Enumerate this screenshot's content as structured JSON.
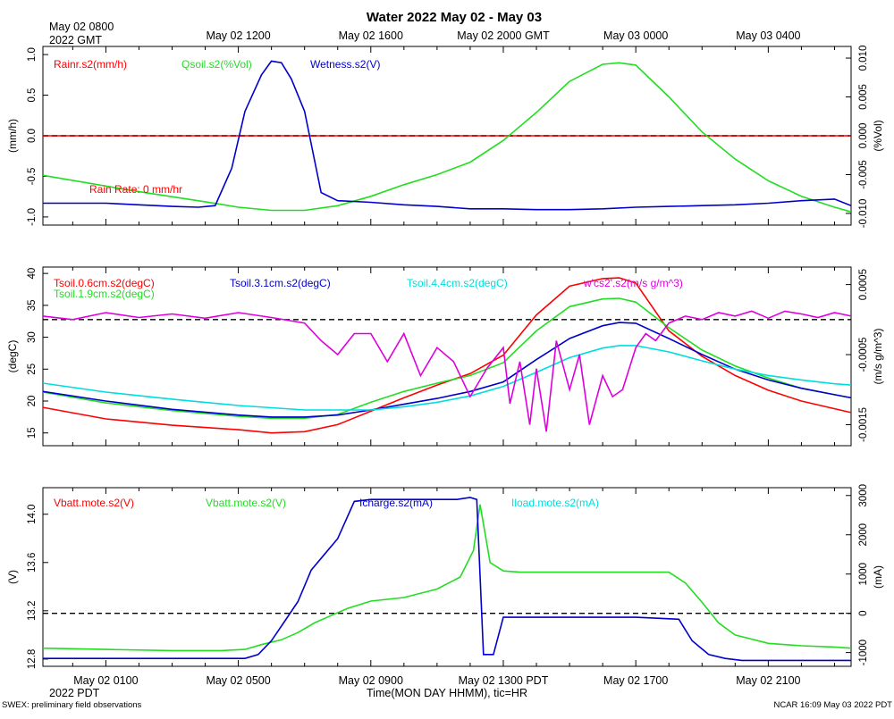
{
  "header": {
    "title": "Water 2022 May 02 - May 03",
    "gmt_origin_line1": "May 02 0800",
    "gmt_origin_line2": "2022 GMT",
    "gmt_ticks": [
      "May 02 1200",
      "May 02 1600",
      "May 02 2000 GMT",
      "May 03 0000",
      "May 03 0400"
    ]
  },
  "footer": {
    "pdt_ticks": [
      "May 02 0100",
      "May 02 0500",
      "May 02 0900",
      "May 02 1300 PDT",
      "May 02 1700",
      "May 02 2100"
    ],
    "pdt_origin": "2022 PDT",
    "xlabel": "Time(MON DAY HHMM), tic=HR",
    "left_note": "SWEX: preliminary field observations",
    "right_note": "NCAR 16:09 May 03 2022 PDT"
  },
  "colors": {
    "red": "#ff0000",
    "green": "#22dd22",
    "blue": "#0000cc",
    "cyan": "#00dddd",
    "magenta": "#dd00dd",
    "black": "#000000"
  },
  "chart_data": [
    {
      "type": "line",
      "x_unit": "hours PDT since May 02 0000",
      "xlim": [
        -0.9,
        23.5
      ],
      "ylabel_left": "(mm/h)",
      "ylim_left": [
        -1.1,
        1.1
      ],
      "yticks_left": [
        "-1.0",
        "-0.5",
        "0.0",
        "0.5",
        "1.0"
      ],
      "ylabel_right": "(%Vol)",
      "ylim_right": [
        -0.0115,
        0.0115
      ],
      "yticks_right": [
        "-0.010",
        "-0.005",
        "0.000",
        "0.005",
        "0.010"
      ],
      "annotation": "Rain Rate: 0 mm/hr",
      "series": [
        {
          "name": "Rainr.s2(mm/h)",
          "color": "red",
          "axis": "left",
          "x": [
            -0.9,
            23.5
          ],
          "y": [
            0,
            0
          ]
        },
        {
          "name": "Qsoil.s2(%Vol)",
          "color": "green",
          "axis": "right",
          "x": [
            -0.9,
            2,
            4,
            5,
            6,
            7,
            8,
            9,
            10,
            11,
            12,
            13,
            14,
            15,
            16,
            16.5,
            17,
            18,
            19,
            20,
            21,
            22,
            23,
            23.5
          ],
          "y": [
            -0.0051,
            -0.0072,
            -0.0085,
            -0.0092,
            -0.0096,
            -0.0096,
            -0.009,
            -0.0078,
            -0.0063,
            -0.005,
            -0.0034,
            -0.0006,
            0.003,
            0.007,
            0.0092,
            0.0094,
            0.0091,
            0.005,
            0.0005,
            -0.003,
            -0.0058,
            -0.0078,
            -0.0092,
            -0.0098
          ]
        },
        {
          "name": "Wetness.s2(V)",
          "color": "blue",
          "axis": "left",
          "x": [
            -0.9,
            1,
            2,
            3,
            3.8,
            4.3,
            4.8,
            5.2,
            5.7,
            6.0,
            6.3,
            6.6,
            7.0,
            7.5,
            8,
            9,
            10,
            11,
            12,
            13,
            14,
            15,
            16,
            17,
            18,
            19,
            20,
            21,
            22,
            23,
            23.5
          ],
          "y": [
            -0.83,
            -0.83,
            -0.85,
            -0.87,
            -0.88,
            -0.86,
            -0.4,
            0.3,
            0.75,
            0.92,
            0.9,
            0.7,
            0.3,
            -0.7,
            -0.8,
            -0.82,
            -0.85,
            -0.87,
            -0.9,
            -0.9,
            -0.91,
            -0.91,
            -0.9,
            -0.88,
            -0.87,
            -0.86,
            -0.85,
            -0.83,
            -0.8,
            -0.78,
            -0.86
          ]
        }
      ]
    },
    {
      "type": "line",
      "x_unit": "hours PDT since May 02 0000",
      "xlim": [
        -0.9,
        23.5
      ],
      "ylabel_left": "(degC)",
      "ylim_left": [
        13,
        41
      ],
      "yticks_left": [
        "15",
        "20",
        "25",
        "30",
        "35",
        "40"
      ],
      "ylabel_right": "(m/s g/m^3)",
      "ylim_right": [
        -0.0018,
        0.00075
      ],
      "yticks_right": [
        "-0.0015",
        "-0.0005",
        "0.0005"
      ],
      "series": [
        {
          "name": "Tsoil.0.6cm.s2(degC)",
          "color": "red",
          "axis": "left",
          "x": [
            -0.9,
            1,
            3,
            5,
            6,
            7,
            8,
            9,
            10,
            11,
            12,
            13,
            14,
            15,
            16,
            16.5,
            17,
            18,
            19,
            20,
            21,
            22,
            23,
            23.5
          ],
          "y": [
            19.0,
            17.2,
            16.2,
            15.5,
            15.0,
            15.2,
            16.3,
            18.4,
            20.5,
            22.5,
            24.3,
            27.2,
            33.5,
            38.0,
            39.2,
            39.3,
            38.5,
            31.0,
            27.0,
            24.0,
            21.7,
            20.0,
            18.8,
            18.2
          ]
        },
        {
          "name": "Tsoil.1.9cm.s2(degC)",
          "color": "green",
          "axis": "left",
          "x": [
            -0.9,
            1,
            3,
            5,
            6,
            7,
            8,
            9,
            10,
            11,
            12,
            13,
            14,
            15,
            16,
            16.5,
            17,
            18,
            19,
            20,
            21,
            22,
            23,
            23.5
          ],
          "y": [
            21.4,
            19.7,
            18.5,
            17.6,
            17.3,
            17.3,
            17.9,
            19.8,
            21.5,
            22.8,
            24.0,
            26.0,
            31.0,
            34.8,
            36.0,
            36.1,
            35.5,
            31.5,
            28.0,
            25.5,
            23.6,
            22.0,
            21.0,
            20.5
          ]
        },
        {
          "name": "Tsoil.3.1cm.s2(degC)",
          "color": "blue",
          "axis": "left",
          "x": [
            -0.9,
            1,
            3,
            5,
            6,
            7,
            8,
            9,
            10,
            11,
            12,
            13,
            14,
            15,
            16,
            16.5,
            17,
            18,
            19,
            20,
            21,
            22,
            23,
            23.5
          ],
          "y": [
            21.5,
            20.0,
            18.7,
            17.8,
            17.5,
            17.5,
            17.8,
            18.6,
            19.5,
            20.4,
            21.5,
            23.0,
            26.5,
            29.8,
            31.8,
            32.3,
            32.2,
            29.8,
            27.3,
            25.0,
            23.3,
            22.0,
            21.0,
            20.5
          ]
        },
        {
          "name": "Tsoil.4.4cm.s2(degC)",
          "color": "cyan",
          "axis": "left",
          "x": [
            -0.9,
            1,
            3,
            5,
            7,
            9,
            10,
            11,
            12,
            13,
            14,
            15,
            16,
            16.5,
            17,
            18,
            19,
            20,
            21,
            22,
            23,
            23.5
          ],
          "y": [
            22.8,
            21.4,
            20.3,
            19.3,
            18.6,
            18.6,
            19.1,
            19.8,
            20.8,
            22.3,
            24.5,
            26.8,
            28.3,
            28.7,
            28.7,
            27.7,
            26.3,
            25.0,
            24.0,
            23.3,
            22.7,
            22.5
          ]
        },
        {
          "name": "w'cs2'.s2(m/s g/m^3)",
          "color": "magenta",
          "axis": "right",
          "x": [
            -0.9,
            0,
            1,
            2,
            3,
            4,
            5,
            6,
            7,
            7.5,
            8,
            8.5,
            9,
            9.5,
            10,
            10.5,
            11,
            11.5,
            12,
            12.5,
            13,
            13.2,
            13.5,
            13.8,
            14,
            14.3,
            14.6,
            15,
            15.3,
            15.6,
            16,
            16.3,
            16.6,
            17,
            17.3,
            17.6,
            18,
            18.5,
            19,
            19.5,
            20,
            20.5,
            21,
            21.5,
            22,
            22.5,
            23,
            23.5
          ],
          "y": [
            5e-05,
            0.0,
            0.0001,
            3e-05,
            8e-05,
            2e-05,
            0.0001,
            3e-05,
            -5e-05,
            -0.0003,
            -0.0005,
            -0.0002,
            -0.0002,
            -0.0006,
            -0.0002,
            -0.0008,
            -0.0004,
            -0.0006,
            -0.0011,
            -0.0007,
            -0.0004,
            -0.0012,
            -0.0006,
            -0.0015,
            -0.0007,
            -0.0016,
            -0.0003,
            -0.001,
            -0.0005,
            -0.0015,
            -0.0008,
            -0.0011,
            -0.001,
            -0.0004,
            -0.0002,
            -0.0003,
            -5e-05,
            5e-05,
            0.0,
            0.0001,
            5e-05,
            0.00012,
            2e-05,
            0.00012,
            8e-05,
            3e-05,
            0.0001,
            5e-05
          ]
        }
      ]
    },
    {
      "type": "line",
      "x_unit": "hours PDT since May 02 0000",
      "xlim": [
        -0.9,
        23.5
      ],
      "ylabel_left": "(V)",
      "ylim_left": [
        12.74,
        14.22
      ],
      "yticks_left": [
        "12.8",
        "13.2",
        "13.6",
        "14.0"
      ],
      "ylabel_right": "(mA)",
      "ylim_right": [
        -1350,
        3200
      ],
      "yticks_right": [
        "-1000",
        "0",
        "1000",
        "2000",
        "3000"
      ],
      "series": [
        {
          "name": "Vbatt.mote.s2(V)",
          "color": "red",
          "axis": "left",
          "x": [],
          "y": []
        },
        {
          "name": "Vbatt.mote.s2(V)",
          "color": "green",
          "axis": "left",
          "x": [
            -0.9,
            1,
            3,
            4.5,
            5.2,
            5.7,
            6.3,
            6.8,
            7.3,
            7.8,
            8.3,
            9,
            10,
            11,
            11.7,
            12.1,
            12.3,
            12.6,
            13,
            13.5,
            14,
            15,
            16,
            17,
            18,
            18.5,
            19,
            19.5,
            20,
            21,
            22,
            23,
            23.5
          ],
          "y": [
            12.89,
            12.88,
            12.87,
            12.87,
            12.88,
            12.92,
            12.96,
            13.02,
            13.1,
            13.16,
            13.22,
            13.28,
            13.31,
            13.38,
            13.48,
            13.7,
            14.08,
            13.6,
            13.53,
            13.52,
            13.52,
            13.52,
            13.52,
            13.52,
            13.52,
            13.43,
            13.27,
            13.1,
            13.0,
            12.93,
            12.91,
            12.9,
            12.89
          ]
        },
        {
          "name": "Icharge.s2(mA)",
          "color": "blue",
          "axis": "right",
          "x": [
            -0.9,
            1,
            3,
            4.5,
            5.2,
            5.6,
            6.0,
            6.4,
            6.8,
            7.2,
            7.6,
            8.0,
            8.5,
            9,
            10,
            11,
            11.6,
            12.0,
            12.2,
            12.4,
            12.7,
            13.0,
            13.5,
            14,
            15,
            16,
            17,
            18.3,
            18.7,
            19.2,
            19.7,
            20.2,
            21,
            22,
            23,
            23.5
          ],
          "y": [
            -1150,
            -1150,
            -1150,
            -1150,
            -1150,
            -1050,
            -700,
            -200,
            300,
            1100,
            1500,
            1900,
            2850,
            2900,
            2900,
            2900,
            2900,
            2950,
            2900,
            -1050,
            -1050,
            -100,
            -100,
            -100,
            -100,
            -100,
            -100,
            -150,
            -700,
            -1050,
            -1150,
            -1200,
            -1200,
            -1200,
            -1200,
            -1200
          ]
        },
        {
          "name": "Iload.mote.s2(mA)",
          "color": "cyan",
          "axis": "right",
          "x": [],
          "y": []
        }
      ]
    }
  ]
}
